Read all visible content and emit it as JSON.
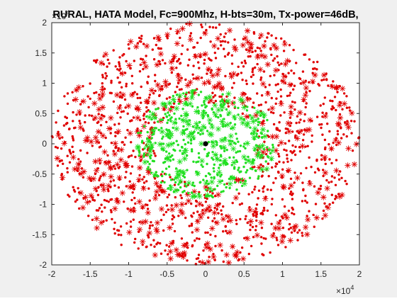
{
  "chart_data": {
    "type": "scatter",
    "title": "RURAL, HATA Model, Fc=900Mhz, H-bts=30m, Tx-power=46dB,",
    "xlabel": "",
    "ylabel": "",
    "x_exponent_label": "×10",
    "x_exponent": "4",
    "y_exponent_label": "×10",
    "y_exponent": "4",
    "xlim": [
      -2,
      2
    ],
    "ylim": [
      -2,
      2
    ],
    "xticks": [
      -2,
      -1.5,
      -1,
      -0.5,
      0,
      0.5,
      1,
      1.5,
      2
    ],
    "yticks": [
      -2,
      -1.5,
      -1,
      -0.5,
      0,
      0.5,
      1,
      1.5,
      2
    ],
    "xtick_labels": [
      "-2",
      "-1.5",
      "-1",
      "-0.5",
      "0",
      "0.5",
      "1",
      "1.5",
      "2"
    ],
    "ytick_labels": [
      "-2",
      "-1.5",
      "-1",
      "-0.5",
      "0",
      "0.5",
      "1",
      "1.5",
      "2"
    ],
    "grid": false,
    "legend": "none",
    "series": [
      {
        "color": "#e00000",
        "markers": [
          "point",
          "asterisk"
        ],
        "region": "annulus",
        "r_min": 0.68,
        "r_max": 2.0,
        "count_points": 1100,
        "count_asterisks": 360,
        "seed": 7
      },
      {
        "color": "#22e022",
        "markers": [
          "point",
          "asterisk"
        ],
        "region": "disk",
        "r_min": 0.0,
        "r_max": 0.9,
        "count_points": 430,
        "count_asterisks": 145,
        "seed": 11
      },
      {
        "color": "#000000",
        "markers": [
          "point"
        ],
        "region": "single",
        "x": 0,
        "y": 0
      }
    ]
  },
  "colors": {
    "figure_background": "#f0f0f0",
    "axes_background": "#ffffff",
    "axis_color": "#262626"
  }
}
